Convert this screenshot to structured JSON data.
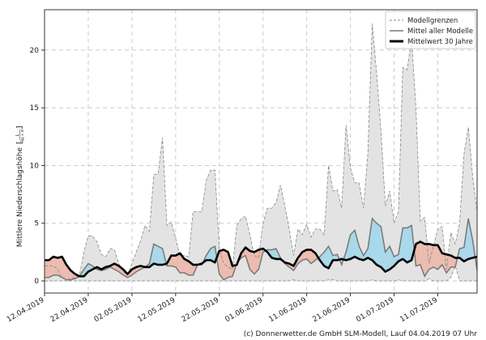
{
  "chart_data": {
    "type": "area",
    "title": "",
    "ylabel": "Mittlere Niederschlagshöhe",
    "ylabel_unit_num": "L",
    "ylabel_unit_den": "Tag × m²",
    "xlabel": "",
    "ylim": [
      -1.05,
      23.5
    ],
    "yticks": [
      0,
      5,
      10,
      15,
      20
    ],
    "xtick_labels": [
      "12.04.2019",
      "22.04.2019",
      "02.05.2019",
      "12.05.2019",
      "22.05.2019",
      "01.06.2019",
      "11.06.2019",
      "21.06.2019",
      "01.07.2019",
      "11.07.2019"
    ],
    "xtick_day_offsets": [
      0,
      10,
      20,
      30,
      40,
      50,
      60,
      70,
      80,
      90
    ],
    "x_unit": "days since 12.04.2019",
    "grid": true,
    "legend_position": "top-right",
    "legend": [
      "Modellgrenzen",
      "Mittel aller Modelle",
      "Mittelwert 30 Jahre"
    ],
    "series": [
      {
        "name": "Modellgrenzen (max)",
        "values": [
          1.3,
          1.3,
          1.3,
          1.0,
          0.3,
          0.1,
          0.2,
          0.3,
          0.5,
          2.5,
          3.9,
          3.9,
          3.4,
          2.3,
          2.1,
          2.8,
          2.7,
          1.5,
          0.8,
          0.5,
          1.5,
          2.5,
          3.5,
          4.8,
          4.3,
          9.2,
          9.3,
          12.4,
          4.8,
          5.1,
          3.7,
          2.2,
          2.2,
          2.1,
          6.0,
          6.0,
          6.0,
          8.7,
          9.6,
          9.6,
          2.8,
          1.5,
          1.2,
          1.0,
          4.8,
          5.4,
          5.6,
          4.0,
          2.2,
          2.0,
          5.0,
          6.3,
          6.3,
          6.8,
          8.3,
          6.5,
          4.5,
          2.2,
          4.5,
          4.0,
          4.9,
          3.8,
          4.5,
          4.5,
          4.0,
          10.0,
          7.8,
          7.9,
          6.3,
          13.5,
          9.8,
          8.5,
          8.5,
          6.3,
          11.0,
          22.3,
          18.0,
          13.0,
          6.5,
          7.8,
          5.0,
          6.0,
          18.5,
          18.3,
          21.0,
          15.0,
          5.2,
          5.5,
          1.5,
          3.0,
          4.5,
          4.7,
          1.0,
          4.2,
          3.2,
          5.0,
          11.0,
          13.3,
          9.0,
          6.0
        ]
      },
      {
        "name": "Modellgrenzen (min)",
        "values": [
          0,
          0,
          0,
          0,
          0,
          0,
          0,
          0,
          0,
          0,
          0,
          0,
          0,
          0,
          0,
          0,
          0,
          0,
          0,
          0,
          0,
          0,
          0,
          0,
          0,
          0,
          0,
          0,
          0,
          0,
          0,
          0,
          0,
          0,
          0,
          0,
          0,
          0,
          0,
          0,
          0,
          0,
          0,
          0,
          0,
          0,
          0,
          0,
          0,
          0,
          0,
          0,
          0,
          0,
          0,
          0,
          0,
          0.1,
          0,
          0,
          0,
          0,
          0,
          0,
          0,
          0.1,
          0.1,
          0,
          0,
          0,
          0,
          0,
          0,
          0,
          0,
          0.1,
          0,
          0,
          0,
          0,
          0,
          0.1,
          0,
          0,
          0,
          0,
          0,
          0,
          0.2,
          0,
          0,
          0,
          0,
          0.3,
          1.3,
          0,
          0,
          0,
          0,
          0
        ]
      },
      {
        "name": "Mittel aller Modelle",
        "values": [
          0.3,
          0.3,
          0.5,
          0.5,
          0.3,
          0.1,
          0.1,
          0.2,
          0.4,
          1.0,
          1.5,
          1.3,
          1.0,
          0.9,
          1.0,
          1.2,
          1.0,
          0.8,
          0.5,
          0.3,
          0.5,
          0.8,
          1.0,
          1.2,
          1.5,
          3.2,
          3.0,
          2.8,
          1.3,
          1.3,
          1.2,
          0.7,
          0.7,
          0.5,
          0.5,
          1.4,
          1.4,
          2.2,
          2.8,
          3.0,
          0.6,
          0.1,
          0.3,
          0.4,
          1.5,
          2.0,
          2.2,
          1.0,
          0.6,
          1.0,
          2.5,
          2.7,
          2.7,
          2.8,
          2.0,
          1.5,
          1.2,
          0.9,
          1.5,
          1.8,
          1.9,
          1.5,
          1.8,
          2.1,
          2.5,
          3.0,
          2.2,
          2.3,
          1.4,
          2.5,
          4.0,
          4.4,
          3.0,
          2.2,
          2.8,
          5.4,
          5.0,
          4.7,
          2.5,
          3.0,
          2.1,
          2.3,
          4.6,
          4.6,
          4.8,
          1.3,
          1.4,
          0.4,
          1.0,
          1.2,
          1.0,
          1.4,
          0.7,
          1.2,
          1.2,
          2.8,
          2.9,
          5.4,
          3.5,
          0.9
        ]
      },
      {
        "name": "Mittelwert 30 Jahre",
        "values": [
          1.8,
          1.8,
          2.1,
          2.0,
          2.1,
          1.4,
          0.9,
          0.6,
          0.4,
          0.4,
          0.8,
          1.0,
          1.2,
          1.0,
          1.2,
          1.3,
          1.5,
          1.3,
          1.0,
          0.6,
          1.0,
          1.2,
          1.3,
          1.2,
          1.2,
          1.5,
          1.4,
          1.4,
          1.5,
          2.2,
          2.2,
          2.4,
          1.9,
          1.7,
          1.4,
          1.4,
          1.5,
          1.8,
          1.8,
          1.6,
          2.6,
          2.7,
          2.5,
          1.3,
          1.4,
          2.4,
          2.9,
          2.6,
          2.5,
          2.7,
          2.8,
          2.5,
          2.0,
          1.9,
          1.9,
          1.6,
          1.5,
          1.3,
          2.0,
          2.5,
          2.7,
          2.7,
          2.4,
          1.8,
          1.3,
          1.1,
          1.8,
          1.8,
          1.9,
          1.8,
          1.9,
          2.1,
          1.9,
          1.8,
          2.0,
          1.8,
          1.4,
          1.2,
          0.8,
          1.0,
          1.3,
          1.7,
          1.9,
          1.6,
          1.8,
          3.2,
          3.4,
          3.2,
          3.2,
          3.1,
          3.1,
          2.4,
          2.3,
          2.2,
          2.0,
          2.0,
          1.7,
          1.9,
          2.0,
          2.1
        ]
      }
    ],
    "colors": {
      "range_fill": "#e3e3e3",
      "range_line": "#888888",
      "mean_line": "#777777",
      "clim_line": "#000000",
      "above_fill": "#a8d8ea",
      "below_fill": "#ebbcaf"
    }
  },
  "footer": "(c) Donnerwetter.de GmbH SLM-Modell, Lauf 04.04.2019 07 Uhr"
}
